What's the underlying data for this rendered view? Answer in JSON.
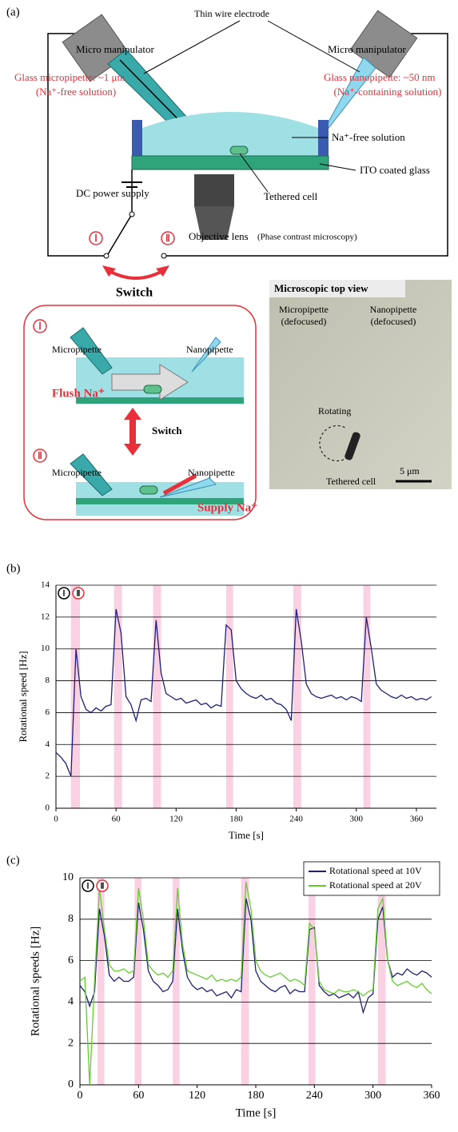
{
  "panel_a": {
    "label": "(a)",
    "thin_wire": "Thin wire electrode",
    "manipulator_left": "Micro manipulator",
    "manipulator_right": "Micro manipulator",
    "micropipette": "Glass micropipette: ~1 μm",
    "micropipette_solution": "(Na⁺-free solution)",
    "nanopipette": "Glass nanopipette: ~50 nm",
    "nanopipette_solution": "(Na⁺-containing solution)",
    "bath": "Na⁺-free solution",
    "glass": "ITO coated glass",
    "power": "DC power supply",
    "cell": "Tethered cell",
    "objective": "Objective lens",
    "objective_note": "(Phase contrast microscopy)",
    "state_1": "Ⅰ",
    "state_2": "Ⅱ",
    "switch": "Switch",
    "inset": {
      "state_1": "Ⅰ",
      "micropipette_1": "Micropipette",
      "nanopipette_1": "Nanopipette",
      "flush": "Flush Na⁺",
      "switch": "Switch",
      "state_2": "Ⅱ",
      "micropipette_2": "Micropipette",
      "nanopipette_2": "Nanopipette",
      "supply": "Supply Na⁺"
    },
    "micrograph": {
      "title": "Microscopic top view",
      "micropipette": [
        "Micropipette",
        "(defocused)"
      ],
      "nanopipette": [
        "Nanopipette",
        "(defocused)"
      ],
      "rotating": "Rotating",
      "cell": "Tethered cell",
      "scale": "5 μm"
    }
  },
  "chart_data": [
    {
      "type": "line",
      "panel_label": "(b)",
      "ylabel": "Rotational speed [Hz]",
      "xlabel": "Time [s]",
      "xlim": [
        0,
        380
      ],
      "ylim": [
        0,
        14
      ],
      "xticks": [
        0,
        60,
        120,
        180,
        240,
        300,
        360
      ],
      "yticks": [
        0,
        2,
        4,
        6,
        8,
        10,
        12,
        14
      ],
      "grid": true,
      "markers": [
        {
          "label": "Ⅰ",
          "color": "#000000"
        },
        {
          "label": "Ⅱ",
          "color": "#e8303a"
        }
      ],
      "highlights": [
        [
          15,
          24
        ],
        [
          58,
          66
        ],
        [
          97,
          105
        ],
        [
          170,
          177
        ],
        [
          237,
          245
        ],
        [
          307,
          314
        ]
      ],
      "highlight_color": "#f7c6dc",
      "x": [
        0,
        5,
        10,
        15,
        20,
        25,
        30,
        35,
        40,
        45,
        50,
        55,
        60,
        65,
        70,
        75,
        80,
        85,
        90,
        95,
        100,
        105,
        110,
        115,
        120,
        125,
        130,
        135,
        140,
        145,
        150,
        155,
        160,
        165,
        170,
        175,
        180,
        185,
        190,
        195,
        200,
        205,
        210,
        215,
        220,
        225,
        230,
        235,
        240,
        245,
        250,
        255,
        260,
        265,
        270,
        275,
        280,
        285,
        290,
        295,
        300,
        305,
        310,
        315,
        320,
        325,
        330,
        335,
        340,
        345,
        350,
        355,
        360,
        365,
        370,
        375
      ],
      "series": [
        {
          "color": "#1f1f7a",
          "values": [
            3.5,
            3.2,
            2.8,
            2,
            10,
            7,
            6.2,
            6,
            6.3,
            6.1,
            6.4,
            6.5,
            12.5,
            11,
            7,
            6.5,
            5.5,
            6.8,
            6.9,
            6.7,
            11.8,
            8.5,
            7.2,
            7,
            6.8,
            6.9,
            6.6,
            6.7,
            6.8,
            6.5,
            6.6,
            6.3,
            6.5,
            6.4,
            11.5,
            11.2,
            8,
            7.5,
            7.2,
            7,
            6.9,
            7.1,
            6.8,
            6.9,
            6.6,
            6.5,
            6.2,
            5.5,
            12.5,
            10.5,
            7.8,
            7.2,
            7,
            6.9,
            7,
            7.1,
            6.9,
            7,
            6.8,
            7,
            6.9,
            6.7,
            12,
            10,
            7.8,
            7.4,
            7.2,
            7,
            6.9,
            7.1,
            6.9,
            7,
            6.8,
            6.9,
            6.8,
            7
          ]
        }
      ]
    },
    {
      "type": "line",
      "panel_label": "(c)",
      "ylabel": "Rotational speeds [Hz]",
      "xlabel": "Time [s]",
      "xlim": [
        0,
        360
      ],
      "ylim": [
        0,
        10
      ],
      "xticks": [
        0,
        60,
        120,
        180,
        240,
        300,
        360
      ],
      "yticks": [
        0,
        2,
        4,
        6,
        8,
        10
      ],
      "grid": true,
      "legend": "upper right",
      "markers": [
        {
          "label": "Ⅰ",
          "color": "#000000"
        },
        {
          "label": "Ⅱ",
          "color": "#e8303a"
        }
      ],
      "highlights": [
        [
          18,
          25
        ],
        [
          56,
          63
        ],
        [
          95,
          102
        ],
        [
          165,
          173
        ],
        [
          234,
          241
        ],
        [
          305,
          313
        ]
      ],
      "highlight_color": "#f7c6dc",
      "x": [
        0,
        5,
        10,
        15,
        20,
        25,
        30,
        35,
        40,
        45,
        50,
        55,
        60,
        65,
        70,
        75,
        80,
        85,
        90,
        95,
        100,
        105,
        110,
        115,
        120,
        125,
        130,
        135,
        140,
        145,
        150,
        155,
        160,
        165,
        170,
        175,
        180,
        185,
        190,
        195,
        200,
        205,
        210,
        215,
        220,
        225,
        230,
        235,
        240,
        245,
        250,
        255,
        260,
        265,
        270,
        275,
        280,
        285,
        290,
        295,
        300,
        305,
        310,
        315,
        320,
        325,
        330,
        335,
        340,
        345,
        350,
        355,
        360
      ],
      "series": [
        {
          "name": "Rotational speed at 10V",
          "color": "#1f1f7a",
          "values": [
            4.8,
            4.5,
            3.8,
            4.5,
            8.5,
            7.2,
            5.3,
            5,
            5.2,
            5,
            5,
            5.2,
            8.8,
            7.5,
            5.5,
            5,
            4.8,
            4.5,
            4.6,
            5,
            8.5,
            6.5,
            5.2,
            4.8,
            4.6,
            4.7,
            4.5,
            4.6,
            4.3,
            4.4,
            4.5,
            4.2,
            4.6,
            4.5,
            9,
            8,
            5.5,
            5,
            4.8,
            4.6,
            4.5,
            4.7,
            4.8,
            4.4,
            4.6,
            4.5,
            4.5,
            7.5,
            7.6,
            4.8,
            4.5,
            4.3,
            4.4,
            4.2,
            4.3,
            4.4,
            4.2,
            4.5,
            3.5,
            4.2,
            4.4,
            8,
            8.6,
            6,
            5.2,
            5.4,
            5.3,
            5.6,
            5.4,
            5.3,
            5.5,
            5.4,
            5.2
          ]
        },
        {
          "name": "Rotational speed at 20V",
          "color": "#66cc33",
          "values": [
            5,
            5.2,
            0,
            5,
            9.5,
            7.5,
            5.8,
            5.5,
            5.5,
            5.6,
            5.4,
            5.5,
            9.5,
            8,
            5.8,
            5.5,
            5.3,
            5.4,
            5.2,
            5.5,
            9.5,
            6.8,
            5.5,
            5.4,
            5.3,
            5.2,
            5.1,
            5.3,
            5,
            5.1,
            5,
            5.1,
            5,
            5.2,
            9.8,
            8.5,
            6,
            5.5,
            5.3,
            5.2,
            5.3,
            5.4,
            5.2,
            5,
            5.1,
            5,
            4.8,
            7.8,
            7.5,
            5,
            4.6,
            4.5,
            4.4,
            4.6,
            4.5,
            4.5,
            4.6,
            4.5,
            4.3,
            4.5,
            4.6,
            8.5,
            9,
            6,
            5,
            4.8,
            4.9,
            5,
            4.8,
            4.7,
            4.9,
            4.6,
            4.4
          ]
        }
      ]
    }
  ]
}
